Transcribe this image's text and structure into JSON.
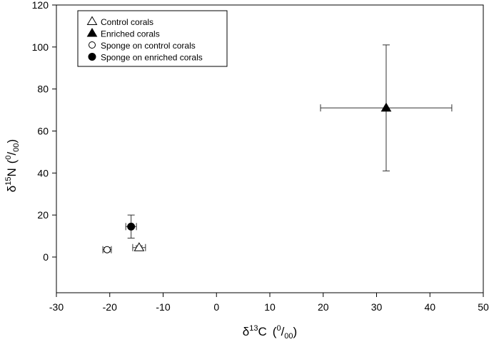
{
  "chart_data": {
    "type": "scatter",
    "xlim": [
      -30,
      50
    ],
    "ylim": [
      -17,
      120
    ],
    "x_ticks": [
      "-30",
      "-20",
      "-10",
      "0",
      "10",
      "20",
      "30",
      "40",
      "50"
    ],
    "y_ticks": [
      "0",
      "20",
      "40",
      "60",
      "80",
      "100",
      "120"
    ],
    "xlabel": {
      "delta": "δ",
      "sup": "13",
      "element": "C",
      "unit_sup": "0",
      "unit_sub": "00",
      "slash": "/"
    },
    "ylabel": {
      "delta": "δ",
      "sup": "15",
      "element": "N",
      "unit_sup": "0",
      "unit_sub": "00",
      "slash": "/"
    },
    "legend_position": "top-left",
    "series": [
      {
        "name": "Control corals",
        "marker": "triangle-open",
        "x": -14.5,
        "y": 4.5,
        "x_err": 1.2,
        "y_err": 0.8
      },
      {
        "name": "Enriched corals",
        "marker": "triangle-filled",
        "x": 31.8,
        "y": 71,
        "x_err": 12.3,
        "y_err": 30
      },
      {
        "name": "Sponge on control corals",
        "marker": "circle-open",
        "x": -20.5,
        "y": 3.5,
        "x_err": 0.8,
        "y_err": 1.0
      },
      {
        "name": "Sponge on enriched corals",
        "marker": "circle-filled",
        "x": -16.0,
        "y": 14.5,
        "x_err": 1.0,
        "y_err": 5.5
      }
    ]
  }
}
